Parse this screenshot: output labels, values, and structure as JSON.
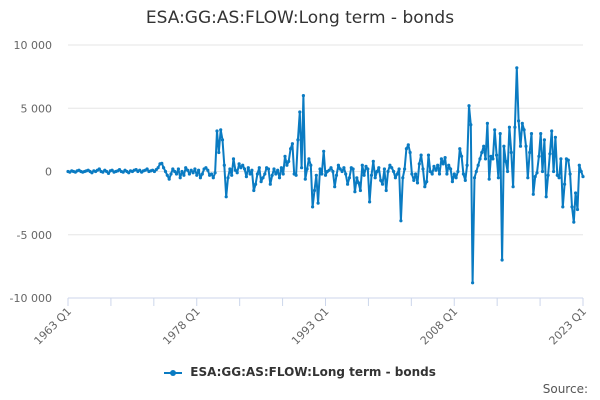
{
  "title": "ESA:GG:AS:FLOW:Long term - bonds",
  "legend": {
    "label": "ESA:GG:AS:FLOW:Long term - bonds",
    "color": "#0a7bc2"
  },
  "source_label": "Source:",
  "chart_data": {
    "type": "line",
    "title": "ESA:GG:AS:FLOW:Long term - bonds",
    "xlabel": "",
    "ylabel": "",
    "ylim": [
      -10000,
      10000
    ],
    "yticks": [
      10000,
      5000,
      0,
      -5000,
      -10000
    ],
    "ytick_labels": [
      "10 000",
      "5 000",
      "0",
      "-5 000",
      "-10 000"
    ],
    "xtick_labels": [
      "1963 Q1",
      "1978 Q1",
      "1993 Q1",
      "2008 Q1",
      "2023 Q1"
    ],
    "x_start": "1963 Q1",
    "x_end": "2023 Q1",
    "grid": true,
    "legend_position": "bottom",
    "series": [
      {
        "name": "ESA:GG:AS:FLOW:Long term - bonds",
        "color": "#0a7bc2",
        "values": [
          0,
          -50,
          50,
          0,
          -50,
          50,
          100,
          0,
          -50,
          0,
          50,
          100,
          0,
          -100,
          50,
          0,
          100,
          200,
          0,
          -50,
          100,
          0,
          -150,
          50,
          100,
          -50,
          0,
          50,
          150,
          0,
          -50,
          100,
          0,
          -100,
          50,
          0,
          100,
          150,
          0,
          100,
          -50,
          50,
          100,
          200,
          0,
          50,
          100,
          0,
          150,
          300,
          600,
          650,
          300,
          0,
          -300,
          -600,
          -200,
          200,
          0,
          -200,
          200,
          -500,
          0,
          -300,
          300,
          100,
          -200,
          100,
          -100,
          200,
          -300,
          100,
          -500,
          -200,
          200,
          300,
          100,
          -300,
          -200,
          -500,
          -100,
          3200,
          1500,
          3300,
          2500,
          500,
          -2000,
          -500,
          200,
          -300,
          1000,
          100,
          -100,
          600,
          300,
          500,
          200,
          -400,
          300,
          -200,
          100,
          -1500,
          -1000,
          -200,
          300,
          -800,
          -500,
          -200,
          300,
          200,
          -1000,
          -300,
          200,
          -200,
          100,
          -500,
          300,
          -200,
          1200,
          500,
          800,
          1800,
          2200,
          -200,
          -300,
          2500,
          4700,
          300,
          6000,
          -600,
          200,
          1000,
          500,
          -2800,
          -1500,
          -300,
          -2500,
          200,
          -200,
          1600,
          -300,
          0,
          100,
          300,
          0,
          -1200,
          -300,
          500,
          200,
          0,
          300,
          -200,
          -1000,
          -500,
          300,
          200,
          -1600,
          -500,
          -900,
          -1500,
          500,
          -300,
          400,
          200,
          -2400,
          -300,
          800,
          -500,
          0,
          300,
          -700,
          -1000,
          200,
          -1500,
          0,
          500,
          300,
          0,
          -500,
          -200,
          200,
          -3900,
          -500,
          200,
          1800,
          2100,
          1500,
          -200,
          -700,
          -200,
          -900,
          600,
          1300,
          200,
          -1200,
          -800,
          1300,
          0,
          -200,
          400,
          100,
          500,
          -200,
          1000,
          600,
          1100,
          -200,
          500,
          200,
          -800,
          -200,
          -500,
          0,
          1800,
          1200,
          -200,
          -700,
          500,
          5200,
          3700,
          -8800,
          -500,
          0,
          500,
          1000,
          1500,
          2000,
          1000,
          3800,
          -600,
          1200,
          1000,
          3300,
          1300,
          -500,
          3000,
          -7000,
          2000,
          800,
          0,
          3500,
          1500,
          -1200,
          3500,
          8200,
          4000,
          2000,
          3800,
          3300,
          2000,
          -500,
          1500,
          3000,
          -1800,
          -400,
          -100,
          1200,
          3000,
          0,
          2500,
          -2000,
          -300,
          1400,
          3200,
          0,
          2700,
          -300,
          -500,
          1000,
          -2800,
          -1000,
          1000,
          900,
          -200,
          -2800,
          -4000,
          -1700,
          -3000,
          500,
          0,
          -400
        ],
        "note": "approximate values read from chart; quarterly from 1963 Q1"
      }
    ]
  }
}
